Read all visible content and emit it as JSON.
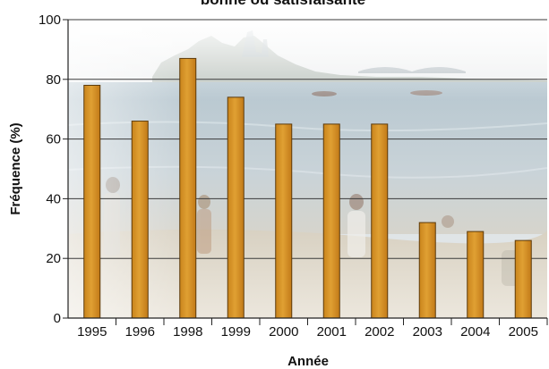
{
  "chart_data": {
    "type": "bar",
    "title": "bonne ou satisfaisante",
    "xlabel": "Année",
    "ylabel": "Fréquence (%)",
    "categories": [
      "1995",
      "1996",
      "1998",
      "1999",
      "2000",
      "2001",
      "2002",
      "2003",
      "2004",
      "2005"
    ],
    "values": [
      78,
      66,
      87,
      74,
      65,
      65,
      65,
      32,
      29,
      26
    ],
    "ylim": [
      0,
      100
    ],
    "yticks": [
      "0",
      "20",
      "40",
      "60",
      "80",
      "100"
    ],
    "grid": true,
    "legend": "none",
    "bar_color": "#D8962A",
    "bar_edge_color": "#5C3A0A",
    "background": "photo of a lakeshore beach with people, water and distant skyline"
  }
}
